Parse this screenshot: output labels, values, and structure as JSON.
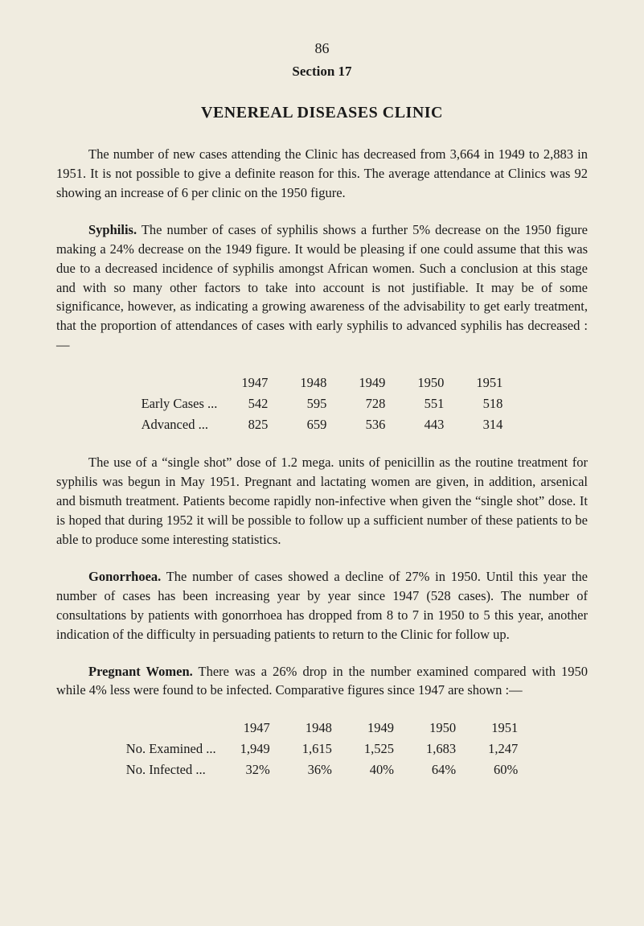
{
  "page_number": "86",
  "section_label": "Section 17",
  "tick_mark": "",
  "title": "VENEREAL DISEASES CLINIC",
  "intro": "The number of new cases attending the Clinic has decreased from 3,664 in 1949 to 2,883 in 1951. It is not possible to give a definite reason for this. The average attendance at Clinics was 92 showing an increase of 6 per clinic on the 1950 figure.",
  "syphilis": {
    "head": "Syphilis.",
    "body": "The number of cases of syphilis shows a further 5% decrease on the 1950 figure making a 24% decrease on the 1949 figure. It would be pleasing if one could assume that this was due to a decreased incidence of syphilis amongst African women. Such a conclusion at this stage and with so many other factors to take into account is not justifiable. It may be of some significance, however, as indicating a growing awareness of the advisability to get early treatment, that the proportion of attendances of cases with early syphilis to advanced syphilis has decreased :—"
  },
  "table1": {
    "years": [
      "1947",
      "1948",
      "1949",
      "1950",
      "1951"
    ],
    "rows": [
      {
        "label": "Early Cases  ...",
        "values": [
          "542",
          "595",
          "728",
          "551",
          "518"
        ]
      },
      {
        "label": "Advanced     ...",
        "values": [
          "825",
          "659",
          "536",
          "443",
          "314"
        ]
      }
    ]
  },
  "single_shot": "The use of a “single shot” dose of 1.2 mega. units of penicillin as the routine treatment for syphilis was begun in May 1951. Pregnant and lactating women are given, in addition, arsenical and bismuth treatment. Patients become rapidly non-infective when given the “single shot” dose. It is hoped that during 1952 it will be possible to follow up a sufficient number of these patients to be able to produce some interesting statistics.",
  "gonorrhoea": {
    "head": "Gonorrhoea.",
    "body": "The number of cases showed a decline of 27% in 1950. Until this year the number of cases has been increasing year by year since 1947 (528 cases). The number of consultations by patients with gonorrhoea has dropped from 8 to 7 in 1950 to 5 this year, another indication of the difficulty in persuading patients to return to the Clinic for follow up."
  },
  "pregnant": {
    "head": "Pregnant Women.",
    "body": "There was a 26% drop in the number examined compared with 1950 while 4% less were found to be infected. Comparative figures since 1947 are shown :—"
  },
  "table2": {
    "years": [
      "1947",
      "1948",
      "1949",
      "1950",
      "1951"
    ],
    "rows": [
      {
        "label": "No. Examined   ...",
        "values": [
          "1,949",
          "1,615",
          "1,525",
          "1,683",
          "1,247"
        ]
      },
      {
        "label": "No. Infected   ...",
        "values": [
          "32%",
          "36%",
          "40%",
          "64%",
          "60%"
        ]
      }
    ]
  }
}
